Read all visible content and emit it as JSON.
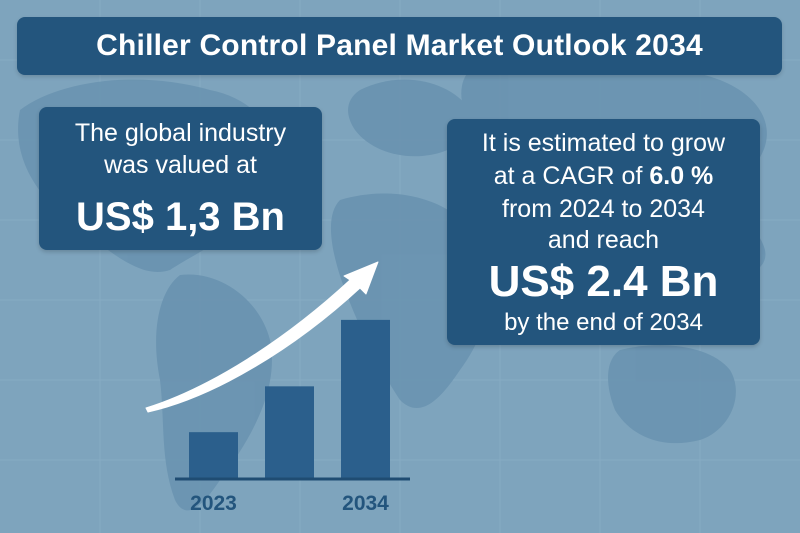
{
  "title": "Chiller Control Panel Market Outlook 2034",
  "left_panel": {
    "intro_line1": "The global industry",
    "intro_line2": "was valued at",
    "value": "US$ 1,3 Bn"
  },
  "right_panel": {
    "line1": "It is estimated to grow",
    "line2_prefix": "at a CAGR of ",
    "cagr": "6.0 %",
    "line3": "from 2024 to 2034",
    "line4": "and reach",
    "value": "US$ 2.4 Bn",
    "line6": "by the end of 2034"
  },
  "colors": {
    "background": "#7ea4bd",
    "panel": "#23557d",
    "bar": "#2b5f8c",
    "text": "#ffffff"
  },
  "chart_data": {
    "type": "bar",
    "bars": [
      {
        "label": "2023",
        "value": 1.0
      },
      {
        "label": "",
        "value": 2.0
      },
      {
        "label": "2034",
        "value": 3.45
      }
    ],
    "ylim": [
      0,
      3.6
    ],
    "grid": false,
    "trend_arrow": true
  }
}
